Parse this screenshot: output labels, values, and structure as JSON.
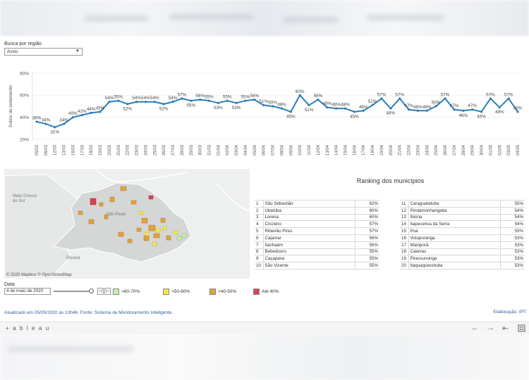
{
  "filters": {
    "region_label": "Busca por região",
    "region_value": "Assis"
  },
  "chart_data": {
    "type": "line",
    "ylabel": "Índice de isolamento",
    "ylim": [
      20,
      80
    ],
    "yticks": [
      "80%",
      "60%",
      "40%",
      "20%"
    ],
    "color": "#2a7fb8",
    "x": [
      "05/03",
      "06/03",
      "12/03",
      "13/03",
      "16/03",
      "17/03",
      "18/03",
      "19/03",
      "20/03",
      "21/03",
      "22/03",
      "23/03",
      "24/03",
      "25/03",
      "26/03",
      "27/03",
      "28/03",
      "29/03",
      "30/03",
      "31/03",
      "01/04",
      "02/04",
      "03/04",
      "04/04",
      "05/04",
      "06/04",
      "07/04",
      "08/04",
      "09/04",
      "10/04",
      "11/04",
      "12/04",
      "13/04",
      "14/04",
      "15/04",
      "16/04",
      "17/04",
      "18/04",
      "19/04",
      "20/04",
      "21/04",
      "22/04",
      "23/04",
      "24/04",
      "25/04",
      "26/04",
      "27/04",
      "28/04",
      "29/04",
      "30/04",
      "01/05",
      "02/05",
      "03/05",
      "04/05"
    ],
    "values": [
      36,
      34,
      31,
      34,
      40,
      42,
      44,
      45,
      54,
      55,
      52,
      54,
      54,
      54,
      52,
      54,
      57,
      55,
      56,
      55,
      53,
      55,
      53,
      55,
      56,
      51,
      50,
      48,
      45,
      60,
      51,
      56,
      49,
      48,
      48,
      45,
      46,
      51,
      57,
      48,
      57,
      47,
      46,
      46,
      50,
      57,
      47,
      46,
      47,
      45,
      57,
      49,
      57,
      45
    ],
    "labels": [
      "36%",
      "34%",
      "31%",
      "34%",
      "40%",
      "42%",
      "44%",
      "45%",
      "54%",
      "55%",
      "52%",
      "54%",
      "54%",
      "54%",
      "52%",
      "54%",
      "57%",
      "55%",
      "56%",
      "55%",
      "53%",
      "55%",
      "53%",
      "55%",
      "56%",
      "51%",
      "50%",
      "48%",
      "45%",
      "60%",
      "51%",
      "56%",
      "49%",
      "48%",
      "48%",
      "45%",
      "46%",
      "51%",
      "57%",
      "48%",
      "57%",
      "47%",
      "46%",
      "46%",
      "50%",
      "57%",
      "47%",
      "46%",
      "47%",
      "45%",
      "57%",
      "49%",
      "57%",
      "45%"
    ]
  },
  "map": {
    "credit": "© 2020 Mapbox © OpenStreetMap",
    "places": [
      "Mato Grosso do Sul",
      "Paraná",
      "São Paulo"
    ]
  },
  "ranking": {
    "title": "Ranking dos municípios",
    "left": [
      {
        "n": "1",
        "name": "São Sebastião",
        "pct": "62%"
      },
      {
        "n": "2",
        "name": "Ubatuba",
        "pct": "60%"
      },
      {
        "n": "3",
        "name": "Lorena",
        "pct": "60%"
      },
      {
        "n": "4",
        "name": "Cruzeiro",
        "pct": "57%"
      },
      {
        "n": "5",
        "name": "Ribeirão Pires",
        "pct": "57%"
      },
      {
        "n": "6",
        "name": "Cajamar",
        "pct": "56%"
      },
      {
        "n": "7",
        "name": "Itanhaém",
        "pct": "56%"
      },
      {
        "n": "8",
        "name": "Bebedouro",
        "pct": "55%"
      },
      {
        "n": "9",
        "name": "Caçapava",
        "pct": "55%"
      },
      {
        "n": "10",
        "name": "São Vicente",
        "pct": "55%"
      }
    ],
    "right": [
      {
        "n": "11",
        "name": "Caraguatatuba",
        "pct": "55%"
      },
      {
        "n": "12",
        "name": "Pindamonhangaba",
        "pct": "54%"
      },
      {
        "n": "13",
        "name": "Ibiúna",
        "pct": "54%"
      },
      {
        "n": "14",
        "name": "Itapecerica da Serra",
        "pct": "54%"
      },
      {
        "n": "15",
        "name": "Poá",
        "pct": "53%"
      },
      {
        "n": "16",
        "name": "Votuporanga",
        "pct": "53%"
      },
      {
        "n": "17",
        "name": "Mairiporã",
        "pct": "53%"
      },
      {
        "n": "18",
        "name": "Caieiras",
        "pct": "53%"
      },
      {
        "n": "19",
        "name": "Pirassununga",
        "pct": "53%"
      },
      {
        "n": "20",
        "name": "Itaquaquecetuba",
        "pct": "53%"
      }
    ]
  },
  "date_filter": {
    "label": "Data",
    "value": "4 de maio de 2020",
    "prev": "◁",
    "next": "▷"
  },
  "legend": [
    {
      "label": ">60-70%",
      "color": "#c6efb0"
    },
    {
      "label": ">50-60%",
      "color": "#f6e94a"
    },
    {
      "label": ">40-50%",
      "color": "#e2a23c"
    },
    {
      "label": "Até 40%",
      "color": "#d9434e"
    }
  ],
  "footer": {
    "updated": "Atualizado em 05/05/2020 às 13h46. Fonte: Sistema de Monitoramento Inteligente.",
    "credit": "Elaboração: IPT"
  },
  "toolbar": {
    "logo": "+ a b l e a u",
    "undo_icon": "undo-icon",
    "redo_icon": "redo-icon",
    "revert_icon": "revert-icon",
    "fullscreen_icon": "fullscreen-icon"
  }
}
